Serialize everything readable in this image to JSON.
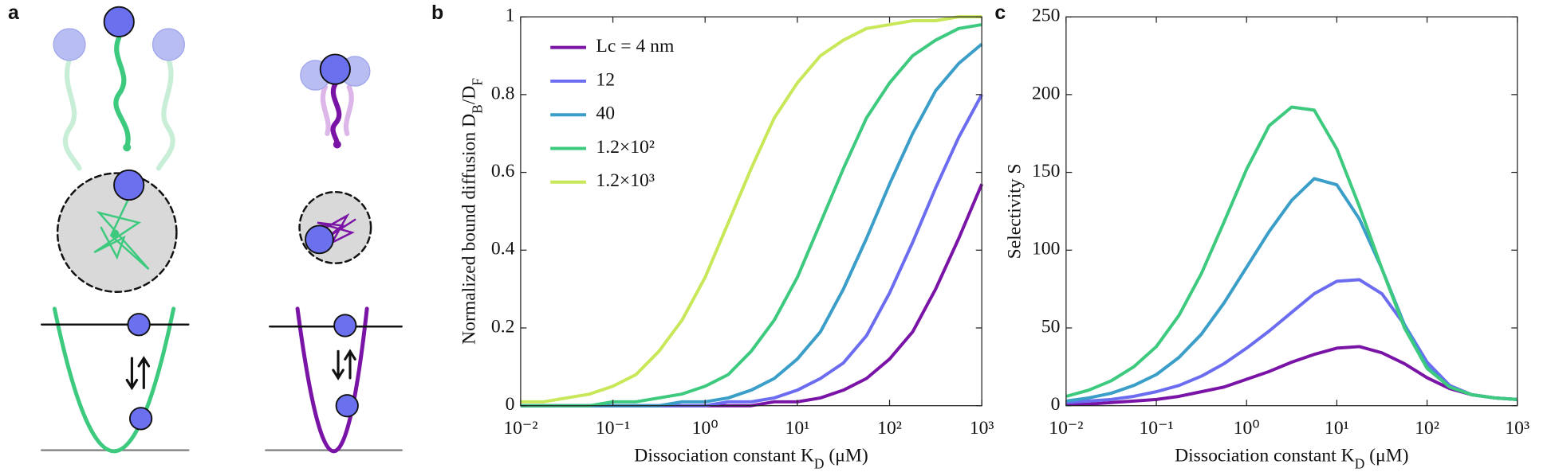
{
  "panel_a": {
    "label": "a"
  },
  "chart_data": [
    {
      "type": "line",
      "panel_label": "b",
      "xlabel": [
        "Dissociation constant K",
        "D",
        " (μM)"
      ],
      "ylabel": [
        "Normalized bound diffusion D",
        "B",
        "/D",
        "F"
      ],
      "x": [
        0.01,
        0.0178,
        0.0316,
        0.0562,
        0.1,
        0.178,
        0.316,
        0.562,
        1,
        1.78,
        3.16,
        5.62,
        10,
        17.8,
        31.6,
        56.2,
        100,
        178,
        316,
        562,
        1000
      ],
      "xscale": "log",
      "xlim": [
        0.01,
        1000
      ],
      "xticks": [
        {
          "value": 0.01,
          "label": "10⁻²"
        },
        {
          "value": 0.1,
          "label": "10⁻¹"
        },
        {
          "value": 1,
          "label": "10⁰"
        },
        {
          "value": 10,
          "label": "10¹"
        },
        {
          "value": 100,
          "label": "10²"
        },
        {
          "value": 1000,
          "label": "10³"
        }
      ],
      "ylim": [
        0,
        1
      ],
      "yticks": [
        0,
        0.2,
        0.4,
        0.6,
        0.8,
        1
      ],
      "legend": "upper left",
      "series": [
        {
          "name": "Lc = 4 nm",
          "color": "#7a14a6",
          "values": [
            0,
            0,
            0,
            0,
            0,
            0,
            0,
            0,
            0,
            0,
            0,
            0.01,
            0.01,
            0.02,
            0.04,
            0.07,
            0.12,
            0.19,
            0.3,
            0.43,
            0.57
          ]
        },
        {
          "name": "12",
          "color": "#6b6cf0",
          "values": [
            0,
            0,
            0,
            0,
            0,
            0,
            0,
            0,
            0,
            0.01,
            0.01,
            0.02,
            0.04,
            0.07,
            0.11,
            0.18,
            0.29,
            0.42,
            0.56,
            0.69,
            0.8
          ]
        },
        {
          "name": "40",
          "color": "#3a9ec8",
          "values": [
            0,
            0,
            0,
            0,
            0,
            0,
            0,
            0.01,
            0.01,
            0.02,
            0.04,
            0.07,
            0.12,
            0.19,
            0.3,
            0.43,
            0.57,
            0.7,
            0.81,
            0.88,
            0.93
          ]
        },
        {
          "name": "1.2×10²",
          "color": "#3dca7e",
          "values": [
            0,
            0,
            0,
            0,
            0.01,
            0.01,
            0.02,
            0.03,
            0.05,
            0.08,
            0.14,
            0.22,
            0.33,
            0.47,
            0.61,
            0.74,
            0.83,
            0.9,
            0.94,
            0.97,
            0.98
          ]
        },
        {
          "name": "1.2×10³",
          "color": "#c8e85a",
          "values": [
            0.01,
            0.01,
            0.02,
            0.03,
            0.05,
            0.08,
            0.14,
            0.22,
            0.33,
            0.47,
            0.61,
            0.74,
            0.83,
            0.9,
            0.94,
            0.97,
            0.98,
            0.99,
            0.99,
            1,
            1
          ]
        }
      ]
    },
    {
      "type": "line",
      "panel_label": "c",
      "xlabel": [
        "Dissociation constant K",
        "D",
        " (μM)"
      ],
      "ylabel": [
        "Selectivity S"
      ],
      "x": [
        0.01,
        0.0178,
        0.0316,
        0.0562,
        0.1,
        0.178,
        0.316,
        0.562,
        1,
        1.78,
        3.16,
        5.62,
        10,
        17.8,
        31.6,
        56.2,
        100,
        178,
        316,
        562,
        1000
      ],
      "xscale": "log",
      "xlim": [
        0.01,
        1000
      ],
      "xticks": [
        {
          "value": 0.01,
          "label": "10⁻²"
        },
        {
          "value": 0.1,
          "label": "10⁻¹"
        },
        {
          "value": 1,
          "label": "10⁰"
        },
        {
          "value": 10,
          "label": "10¹"
        },
        {
          "value": 100,
          "label": "10²"
        },
        {
          "value": 1000,
          "label": "10³"
        }
      ],
      "ylim": [
        0,
        250
      ],
      "yticks": [
        0,
        50,
        100,
        150,
        200,
        250
      ],
      "series": [
        {
          "color": "#7a14a6",
          "values": [
            1,
            1,
            2,
            3,
            4,
            6,
            9,
            12,
            17,
            22,
            28,
            33,
            37,
            38,
            34,
            27,
            18,
            11,
            7,
            5,
            4
          ]
        },
        {
          "color": "#6b6cf0",
          "values": [
            2,
            3,
            4,
            6,
            9,
            13,
            19,
            27,
            37,
            48,
            60,
            72,
            80,
            81,
            72,
            52,
            28,
            13,
            7,
            5,
            4
          ]
        },
        {
          "color": "#3a9ec8",
          "values": [
            3,
            5,
            8,
            13,
            20,
            31,
            46,
            66,
            89,
            112,
            132,
            146,
            142,
            120,
            88,
            52,
            25,
            12,
            7,
            5,
            4
          ]
        },
        {
          "color": "#3dca7e",
          "values": [
            6,
            10,
            16,
            25,
            38,
            58,
            85,
            118,
            152,
            180,
            192,
            190,
            165,
            128,
            88,
            50,
            24,
            12,
            7,
            5,
            4
          ]
        }
      ]
    }
  ]
}
